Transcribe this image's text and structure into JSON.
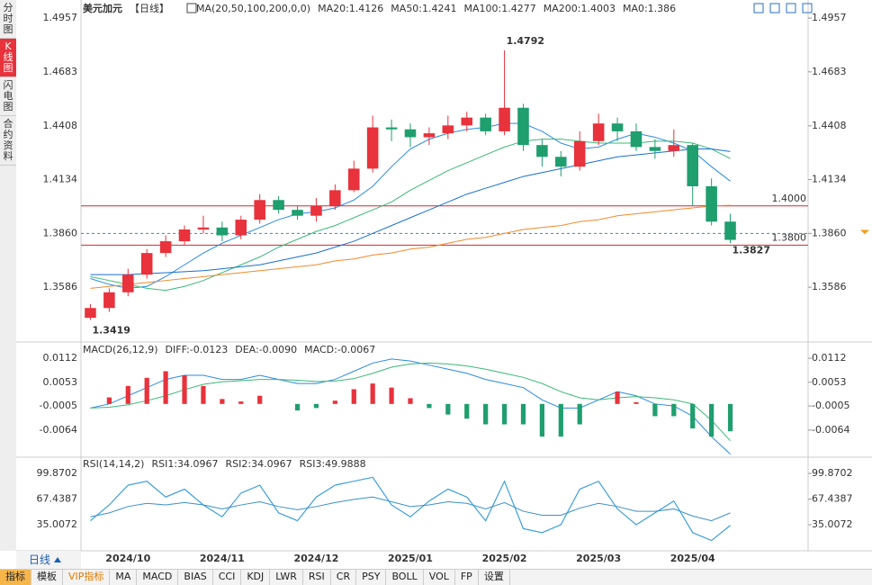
{
  "sidebar": {
    "items": [
      "分时图",
      "K线图",
      "闪电图",
      "合约资料"
    ],
    "active": 1
  },
  "toolbar": {
    "period": "日线",
    "items": [
      "指标",
      "模板",
      "VIP指标",
      "MA",
      "MACD",
      "BIAS",
      "CCI",
      "KDJ",
      "LWR",
      "RSI",
      "CR",
      "PSY",
      "BOLL",
      "VOL",
      "FP",
      "设置"
    ],
    "active": 0,
    "highlight": 2
  },
  "chart_data": [
    {
      "type": "candlestick",
      "title": "美元加元",
      "period": "【日线】",
      "indicator": "MA(20,50,100,200,0,0)",
      "categories": [
        null,
        null,
        "2024/10",
        null,
        null,
        null,
        null,
        "2024/11",
        null,
        null,
        null,
        null,
        "2024/12",
        null,
        null,
        null,
        null,
        "2025/01",
        null,
        null,
        null,
        null,
        "2025/02",
        null,
        null,
        null,
        null,
        "2025/03",
        null,
        null,
        null,
        null,
        "2025/04",
        null,
        null
      ],
      "open": [
        1.343,
        1.348,
        1.356,
        1.365,
        1.376,
        1.382,
        1.388,
        1.389,
        1.385,
        1.393,
        1.403,
        1.398,
        1.395,
        1.4,
        1.408,
        1.419,
        1.44,
        1.439,
        1.435,
        1.437,
        1.441,
        1.445,
        1.438,
        1.45,
        1.431,
        1.425,
        1.42,
        1.433,
        1.442,
        1.438,
        1.43,
        1.428,
        1.431,
        1.41,
        1.392
      ],
      "high": [
        1.35,
        1.358,
        1.368,
        1.378,
        1.385,
        1.39,
        1.395,
        1.392,
        1.395,
        1.406,
        1.405,
        1.4,
        1.404,
        1.411,
        1.423,
        1.446,
        1.444,
        1.442,
        1.44,
        1.446,
        1.448,
        1.447,
        1.4792,
        1.452,
        1.434,
        1.428,
        1.438,
        1.447,
        1.445,
        1.442,
        1.434,
        1.439,
        1.432,
        1.414,
        1.396
      ],
      "low": [
        1.3419,
        1.346,
        1.354,
        1.363,
        1.374,
        1.38,
        1.386,
        1.382,
        1.383,
        1.391,
        1.396,
        1.393,
        1.392,
        1.398,
        1.407,
        1.417,
        1.433,
        1.43,
        1.431,
        1.434,
        1.438,
        1.436,
        1.436,
        1.428,
        1.42,
        1.415,
        1.418,
        1.431,
        1.433,
        1.428,
        1.424,
        1.425,
        1.4,
        1.39,
        1.381
      ],
      "close": [
        1.348,
        1.356,
        1.365,
        1.376,
        1.382,
        1.388,
        1.389,
        1.385,
        1.393,
        1.403,
        1.398,
        1.395,
        1.4,
        1.408,
        1.419,
        1.44,
        1.439,
        1.435,
        1.437,
        1.441,
        1.445,
        1.438,
        1.45,
        1.431,
        1.425,
        1.42,
        1.433,
        1.442,
        1.438,
        1.43,
        1.428,
        1.431,
        1.41,
        1.392,
        1.3827
      ],
      "up_color": "#e8323c",
      "down_color": "#1f9e6e",
      "series": [
        {
          "name": "MA20:1.4126",
          "color": "#2b8be0",
          "values": [
            1.363,
            1.36,
            1.358,
            1.359,
            1.364,
            1.37,
            1.376,
            1.381,
            1.385,
            1.389,
            1.393,
            1.396,
            1.397,
            1.399,
            1.403,
            1.41,
            1.42,
            1.429,
            1.434,
            1.437,
            1.439,
            1.44,
            1.442,
            1.442,
            1.438,
            1.432,
            1.429,
            1.43,
            1.434,
            1.437,
            1.435,
            1.432,
            1.428,
            1.42,
            1.4126
          ]
        },
        {
          "name": "MA50:1.4241",
          "color": "#3cb878",
          "values": [
            1.364,
            1.362,
            1.36,
            1.358,
            1.357,
            1.359,
            1.362,
            1.366,
            1.37,
            1.374,
            1.379,
            1.383,
            1.387,
            1.39,
            1.394,
            1.398,
            1.402,
            1.408,
            1.413,
            1.418,
            1.422,
            1.426,
            1.43,
            1.433,
            1.434,
            1.434,
            1.433,
            1.432,
            1.432,
            1.432,
            1.433,
            1.433,
            1.432,
            1.429,
            1.4241
          ]
        },
        {
          "name": "MA100:1.4277",
          "color": "#1a6fd0",
          "values": [
            1.365,
            1.365,
            1.365,
            1.3655,
            1.366,
            1.3665,
            1.367,
            1.368,
            1.369,
            1.37,
            1.372,
            1.374,
            1.376,
            1.379,
            1.382,
            1.386,
            1.39,
            1.394,
            1.398,
            1.402,
            1.406,
            1.409,
            1.412,
            1.415,
            1.417,
            1.419,
            1.421,
            1.423,
            1.425,
            1.426,
            1.427,
            1.428,
            1.429,
            1.429,
            1.4277
          ]
        },
        {
          "name": "MA200:1.4003",
          "color": "#f08a2c",
          "values": [
            1.358,
            1.359,
            1.36,
            1.361,
            1.362,
            1.363,
            1.364,
            1.365,
            1.366,
            1.367,
            1.368,
            1.369,
            1.37,
            1.372,
            1.373,
            1.375,
            1.376,
            1.378,
            1.379,
            1.381,
            1.383,
            1.384,
            1.386,
            1.388,
            1.389,
            1.39,
            1.392,
            1.393,
            1.395,
            1.396,
            1.397,
            1.398,
            1.399,
            1.4,
            1.4003
          ]
        }
      ],
      "legend_extra": [
        {
          "name": "MA0:1.386",
          "color": "#d98ad9"
        }
      ],
      "hlines": [
        {
          "value": 1.4,
          "label": "1.4000",
          "color": "#d9262e"
        },
        {
          "value": 1.38,
          "label": "1.3800",
          "color": "#d9262e"
        }
      ],
      "price_line": {
        "value": 1.386,
        "color": "#2a8fb8"
      },
      "annotations": [
        {
          "value": 1.4792,
          "index": 22,
          "color": "#e8323c",
          "side": "above"
        },
        {
          "value": 1.3419,
          "index": 0,
          "color": "#1f9e6e",
          "side": "below"
        },
        {
          "value": 1.3827,
          "index": 34,
          "color": "#1f9e6e",
          "side": "below"
        }
      ],
      "ylim": [
        1.3316,
        1.5026
      ],
      "yticks": [
        1.4957,
        1.4683,
        1.4408,
        1.4134,
        {
          "value": 1.386,
          "label": "1.3860"
        },
        1.3586
      ]
    },
    {
      "type": "macd",
      "title": "MACD(26,12,9)",
      "series": [
        {
          "name": "DIFF:-0.0123",
          "color": "#2b8be0",
          "values": [
            -0.001,
            0.0,
            0.002,
            0.004,
            0.006,
            0.007,
            0.007,
            0.006,
            0.006,
            0.007,
            0.006,
            0.005,
            0.005,
            0.006,
            0.008,
            0.01,
            0.011,
            0.0105,
            0.0095,
            0.0085,
            0.0075,
            0.006,
            0.005,
            0.004,
            0.001,
            -0.001,
            -0.001,
            0.001,
            0.003,
            0.002,
            0.0,
            -0.0005,
            -0.003,
            -0.008,
            -0.0123
          ]
        },
        {
          "name": "DEA:-0.0090",
          "color": "#3cb878",
          "values": [
            -0.001,
            -0.0008,
            -0.0002,
            0.0008,
            0.002,
            0.0035,
            0.0048,
            0.0054,
            0.0057,
            0.006,
            0.006,
            0.0058,
            0.0055,
            0.0056,
            0.0062,
            0.0075,
            0.009,
            0.0098,
            0.01,
            0.0098,
            0.0093,
            0.0085,
            0.0075,
            0.0065,
            0.005,
            0.003,
            0.0015,
            0.001,
            0.0015,
            0.0018,
            0.0015,
            0.001,
            0.0,
            -0.004,
            -0.009
          ]
        },
        {
          "name": "MACD:-0.0067",
          "color": "#2b8be0",
          "kind": "histogram",
          "values": [
            0,
            0.0016,
            0.0044,
            0.0064,
            0.008,
            0.007,
            0.0044,
            0.0012,
            0.0006,
            0.002,
            0,
            -0.0016,
            -0.001,
            0.0008,
            0.0036,
            0.005,
            0.004,
            0.0014,
            -0.001,
            -0.0026,
            -0.0036,
            -0.005,
            -0.005,
            -0.005,
            -0.008,
            -0.008,
            -0.005,
            0,
            0.003,
            0.0004,
            -0.003,
            -0.003,
            -0.006,
            -0.008,
            -0.0067
          ]
        }
      ],
      "up_color": "#e8323c",
      "down_color": "#1f9e6e",
      "ylim": [
        -0.0126,
        0.0145
      ],
      "yticks": [
        0.0112,
        0.0053,
        -0.0005,
        -0.0064
      ]
    },
    {
      "type": "rsi",
      "title": "RSI(14,14,2)",
      "series": [
        {
          "name": "RSI1:34.0967",
          "color": "#2b8be0",
          "values": [
            40,
            60,
            85,
            90,
            70,
            80,
            60,
            45,
            75,
            85,
            50,
            40,
            70,
            85,
            90,
            95,
            60,
            45,
            65,
            80,
            70,
            40,
            90,
            30,
            25,
            35,
            80,
            90,
            55,
            35,
            50,
            65,
            25,
            15,
            34.0967
          ]
        },
        {
          "name": "RSI2:34.0967",
          "color": "#3aa0d8",
          "values": [
            40,
            60,
            85,
            90,
            70,
            80,
            60,
            45,
            75,
            85,
            50,
            40,
            70,
            85,
            90,
            95,
            60,
            45,
            65,
            80,
            70,
            40,
            90,
            30,
            25,
            35,
            80,
            90,
            55,
            35,
            50,
            65,
            25,
            15,
            34.0967
          ]
        },
        {
          "name": "RSI3:49.9888",
          "color": "#3a90c8",
          "values": [
            45,
            50,
            58,
            62,
            60,
            63,
            60,
            55,
            60,
            64,
            58,
            54,
            58,
            63,
            67,
            70,
            64,
            58,
            60,
            64,
            62,
            55,
            63,
            52,
            47,
            47,
            56,
            62,
            58,
            52,
            52,
            55,
            46,
            40,
            49.9888
          ]
        }
      ],
      "ylim": [
        4.3,
        118.1
      ],
      "yticks": [
        99.8702,
        67.4387,
        35.0072
      ]
    }
  ]
}
